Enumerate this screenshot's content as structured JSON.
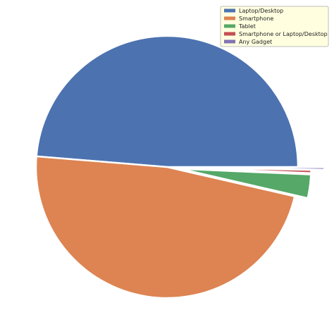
{
  "chart_data": {
    "type": "pie",
    "title": "",
    "legend_position": "top-right",
    "slices": [
      {
        "label": "Laptop/Desktop",
        "value": 48.7,
        "color": "#4C72B0",
        "explode": 0.0
      },
      {
        "label": "Smartphone",
        "value": 47.7,
        "color": "#DD8452",
        "explode": 0.0
      },
      {
        "label": "Tablet",
        "value": 2.9,
        "color": "#55A868",
        "explode": 0.1
      },
      {
        "label": "Smartphone or Laptop/Desktop",
        "value": 0.4,
        "color": "#C44E52",
        "explode": 0.1
      },
      {
        "label": "Any Gadget",
        "value": 0.3,
        "color": "#8172B3",
        "explode": 0.2
      }
    ]
  }
}
